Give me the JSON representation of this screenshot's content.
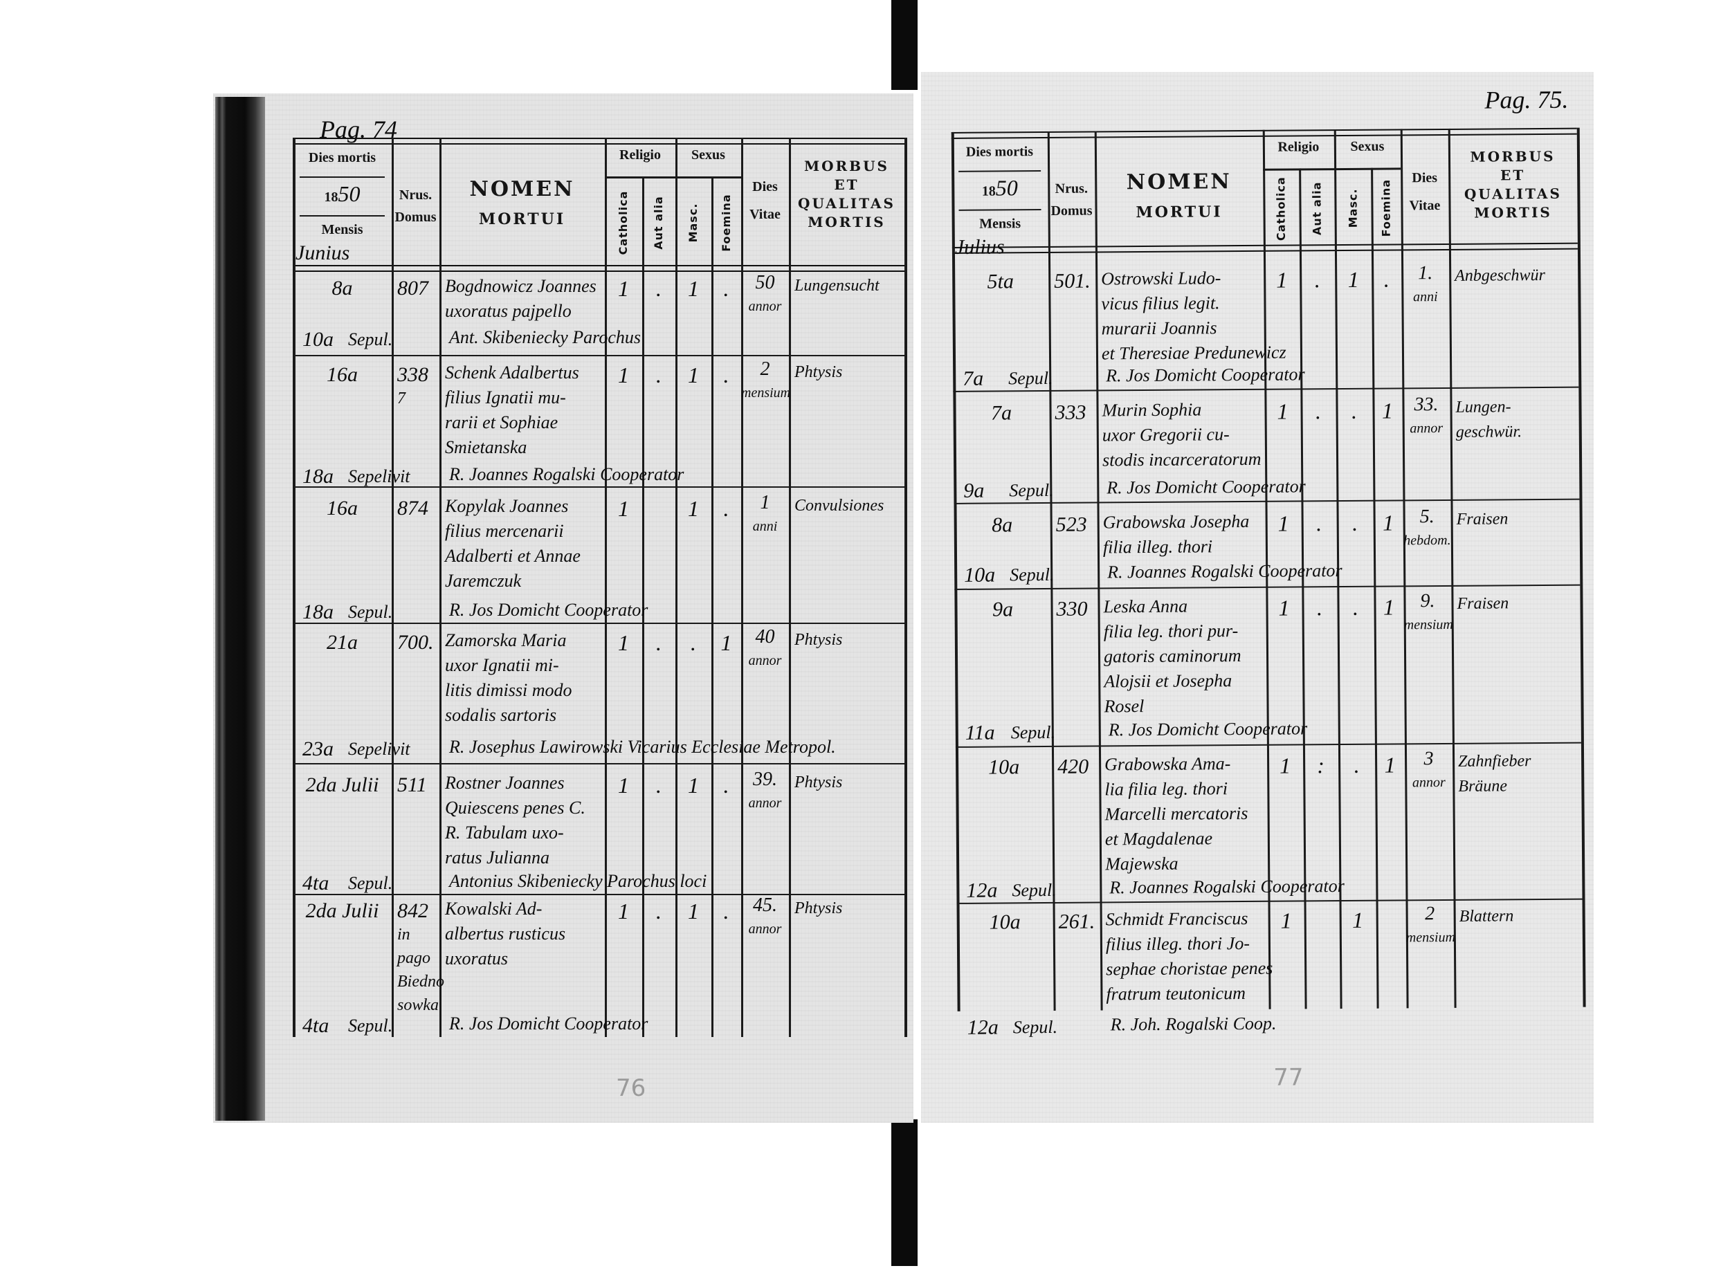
{
  "header": {
    "dies_mortis": "Dies mortis",
    "year_printed": "18",
    "year_written": "50",
    "mensis": "Mensis",
    "nrus": "Nrus.",
    "domus": "Domus",
    "nomen": "NOMEN",
    "mortui": "MORTUI",
    "religio": "Religio",
    "catholica": "Catholica",
    "aut_alia": "Aut alia",
    "sexus": "Sexus",
    "masc": "Masc.",
    "foemina": "Foemina",
    "dies": "Dies",
    "vitae": "Vitae",
    "morbus_lines": [
      "MORBUS",
      "ET",
      "QUALITAS",
      "MORTIS"
    ]
  },
  "pages": [
    {
      "page_label": "Pag. 74",
      "month": "Junius",
      "pencil_number": "76",
      "entries": [
        {
          "day": "8a",
          "domus": [
            "807"
          ],
          "name": [
            "Bogdnowicz Joannes",
            "uxoratus pajpello"
          ],
          "catholica": "1",
          "aut_alia": ".",
          "masc": "1",
          "foemina": ".",
          "vitae": [
            "50",
            "annor"
          ],
          "morbus": [
            "Lungensucht"
          ],
          "burial": {
            "day": "10a",
            "label": "Sepul.",
            "text": "Ant. Skibeniecky Parochus"
          }
        },
        {
          "day": "16a",
          "domus": [
            "338",
            "7"
          ],
          "name": [
            "Schenk Adalbertus",
            "filius Ignatii mu-",
            "rarii et Sophiae",
            "Smietanska"
          ],
          "catholica": "1",
          "aut_alia": ".",
          "masc": "1",
          "foemina": ".",
          "vitae": [
            "2",
            "mensium"
          ],
          "morbus": [
            "Phtysis"
          ],
          "burial": {
            "day": "18a",
            "label": "Sepelivit",
            "text": "R. Joannes Rogalski Cooperator"
          }
        },
        {
          "day": "16a",
          "domus": [
            "874"
          ],
          "name": [
            "Kopylak Joannes",
            "filius mercenarii",
            "Adalberti et Annae",
            "Jaremczuk"
          ],
          "catholica": "1",
          "aut_alia": "",
          "masc": "1",
          "foemina": ".",
          "vitae": [
            "1",
            "anni"
          ],
          "morbus": [
            "Convulsiones"
          ],
          "burial": {
            "day": "18a",
            "label": "Sepul.",
            "text": "R. Jos Domicht Cooperator"
          }
        },
        {
          "day": "21a",
          "domus": [
            "700."
          ],
          "name": [
            "Zamorska Maria",
            "uxor Ignatii mi-",
            "litis dimissi modo",
            "sodalis sartoris"
          ],
          "catholica": "1",
          "aut_alia": ".",
          "masc": ".",
          "foemina": "1",
          "vitae": [
            "40",
            "annor"
          ],
          "morbus": [
            "Phtysis"
          ],
          "burial": {
            "day": "23a",
            "label": "Sepelivit",
            "text": "R. Josephus Lawirowski Vicarius Ecclesiae Metropol."
          }
        },
        {
          "day": "2da Julii",
          "domus": [
            "511"
          ],
          "name": [
            "Rostner Joannes",
            "Quiescens penes C.",
            "R. Tabulam uxo-",
            "ratus Julianna"
          ],
          "catholica": "1",
          "aut_alia": ".",
          "masc": "1",
          "foemina": ".",
          "vitae": [
            "39.",
            "annor"
          ],
          "morbus": [
            "Phtysis"
          ],
          "burial": {
            "day": "4ta",
            "label": "Sepul.",
            "text": "Antonius Skibeniecky Parochus loci"
          }
        },
        {
          "day": "2da Julii",
          "domus": [
            "842",
            "in",
            "pago",
            "Biedno",
            "sowka"
          ],
          "name": [
            "Kowalski Ad-",
            "albertus rusticus",
            "uxoratus"
          ],
          "catholica": "1",
          "aut_alia": ".",
          "masc": "1",
          "foemina": ".",
          "vitae": [
            "45.",
            "annor"
          ],
          "morbus": [
            "Phtysis"
          ],
          "burial": {
            "day": "4ta",
            "label": "Sepul.",
            "text": "R. Jos Domicht Cooperator"
          }
        }
      ]
    },
    {
      "page_label": "Pag. 75.",
      "month": "Julius",
      "pencil_number": "77",
      "entries": [
        {
          "day": "5ta",
          "domus": [
            "501."
          ],
          "name": [
            "Ostrowski Ludo-",
            "vicus filius legit.",
            "murarii Joannis",
            "et Theresiae Predunewicz"
          ],
          "catholica": "1",
          "aut_alia": ".",
          "masc": "1",
          "foemina": ".",
          "vitae": [
            "1.",
            "anni"
          ],
          "morbus": [
            "Anbgeschwür"
          ],
          "burial": {
            "day": "7a",
            "label": "Sepul.",
            "text": "R. Jos Domicht Cooperator"
          }
        },
        {
          "day": "7a",
          "domus": [
            "333"
          ],
          "name": [
            "Murin Sophia",
            "uxor Gregorii cu-",
            "stodis incarceratorum"
          ],
          "catholica": "1",
          "aut_alia": ".",
          "masc": ".",
          "foemina": "1",
          "vitae": [
            "33.",
            "annor"
          ],
          "morbus": [
            "Lungen-",
            "geschwür."
          ],
          "burial": {
            "day": "9a",
            "label": "Sepul.",
            "text": "R. Jos Domicht Cooperator"
          }
        },
        {
          "day": "8a",
          "domus": [
            "523"
          ],
          "name": [
            "Grabowska Josepha",
            "filia illeg. thori"
          ],
          "catholica": "1",
          "aut_alia": ".",
          "masc": ".",
          "foemina": "1",
          "vitae": [
            "5.",
            "hebdom."
          ],
          "morbus": [
            "Fraisen"
          ],
          "burial": {
            "day": "10a",
            "label": "Sepul.",
            "text": "R. Joannes Rogalski Cooperator"
          }
        },
        {
          "day": "9a",
          "domus": [
            "330"
          ],
          "name": [
            "Leska Anna",
            "filia leg. thori pur-",
            "gatoris caminorum",
            "Alojsii et Josepha",
            "Rosel"
          ],
          "catholica": "1",
          "aut_alia": ".",
          "masc": ".",
          "foemina": "1",
          "vitae": [
            "9.",
            "mensium"
          ],
          "morbus": [
            "Fraisen"
          ],
          "burial": {
            "day": "11a",
            "label": "Sepul.",
            "text": "R. Jos Domicht Cooperator"
          }
        },
        {
          "day": "10a",
          "domus": [
            "420"
          ],
          "name": [
            "Grabowska Ama-",
            "lia filia leg. thori",
            "Marcelli mercatoris",
            "et Magdalenae",
            "Majewska"
          ],
          "catholica": "1",
          "aut_alia": ":",
          "masc": ".",
          "foemina": "1",
          "vitae": [
            "3",
            "annor"
          ],
          "morbus": [
            "Zahnfieber",
            "Bräune"
          ],
          "burial": {
            "day": "12a",
            "label": "Sepul.",
            "text": "R. Joannes Rogalski Cooperator"
          }
        },
        {
          "day": "10a",
          "domus": [
            "261."
          ],
          "name": [
            "Schmidt Franciscus",
            "filius illeg. thori Jo-",
            "sephae choristae penes",
            "fratrum teutonicum"
          ],
          "catholica": "1",
          "aut_alia": "",
          "masc": "1",
          "foemina": "",
          "vitae": [
            "2",
            "mensium"
          ],
          "morbus": [
            "Blattern"
          ],
          "burial": {
            "day": "12a",
            "label": "Sepul.",
            "text": "R. Joh. Rogalski Coop."
          }
        }
      ]
    }
  ]
}
